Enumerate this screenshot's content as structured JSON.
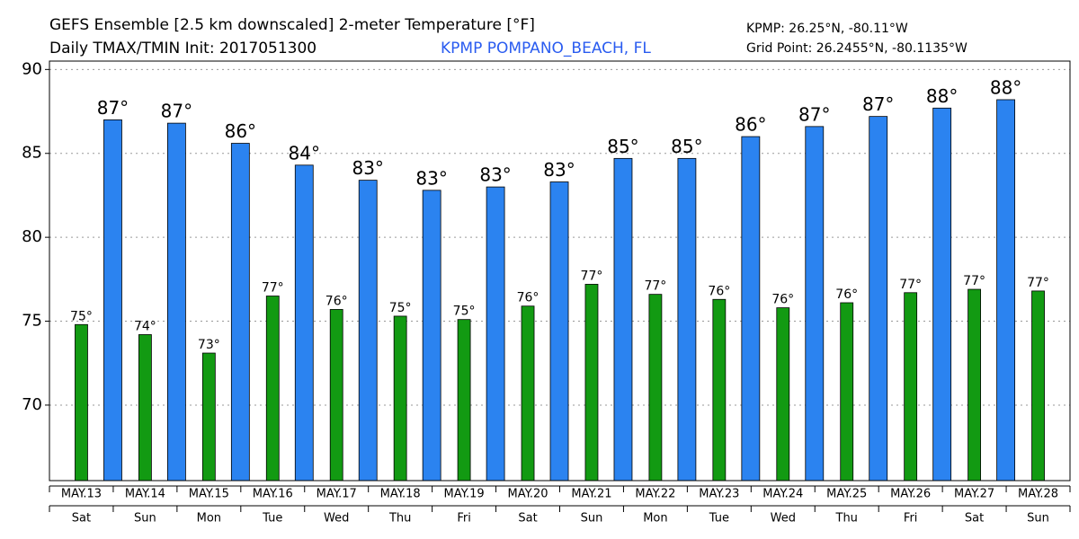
{
  "chart_data": {
    "type": "bar",
    "title": "GEFS Ensemble [2.5 km downscaled] 2-meter Temperature [°F]",
    "subtitle": "Daily TMAX/TMIN Init: 2017051300",
    "station": "KPMP POMPANO_BEACH, FL",
    "station_coords": "KPMP: 26.25°N, -80.11°W",
    "grid_point": "Grid Point: 26.2455°N, -80.1135°W",
    "categories": [
      "MAY.13",
      "MAY.14",
      "MAY.15",
      "MAY.16",
      "MAY.17",
      "MAY.18",
      "MAY.19",
      "MAY.20",
      "MAY.21",
      "MAY.22",
      "MAY.23",
      "MAY.24",
      "MAY.25",
      "MAY.26",
      "MAY.27",
      "MAY.28"
    ],
    "weekdays": [
      "Sat",
      "Sun",
      "Mon",
      "Tue",
      "Wed",
      "Thu",
      "Fri",
      "Sat",
      "Sun",
      "Mon",
      "Tue",
      "Wed",
      "Thu",
      "Fri",
      "Sat",
      "Sun"
    ],
    "series": [
      {
        "color": "#129a12",
        "values": [
          74.8,
          74.2,
          73.1,
          76.5,
          75.7,
          75.3,
          75.1,
          75.9,
          77.2,
          76.6,
          76.3,
          75.8,
          76.1,
          76.7,
          76.9,
          76.8
        ],
        "value_labels": [
          "75°",
          "74°",
          "73°",
          "77°",
          "76°",
          "75°",
          "75°",
          "76°",
          "77°",
          "77°",
          "76°",
          "76°",
          "76°",
          "77°",
          "77°",
          "77°"
        ]
      },
      {
        "color": "#2b83f0",
        "values": [
          87.0,
          86.8,
          85.6,
          84.3,
          83.4,
          82.8,
          83.0,
          83.3,
          84.7,
          84.7,
          86.0,
          86.6,
          87.2,
          87.7,
          88.2,
          null
        ],
        "value_labels": [
          "87°",
          "87°",
          "86°",
          "84°",
          "83°",
          "83°",
          "83°",
          "83°",
          "85°",
          "85°",
          "86°",
          "87°",
          "87°",
          "88°",
          "88°",
          null
        ]
      }
    ],
    "ylim": [
      65.5,
      90.5
    ],
    "yticks": [
      70,
      75,
      80,
      85,
      90
    ],
    "grid": true
  }
}
